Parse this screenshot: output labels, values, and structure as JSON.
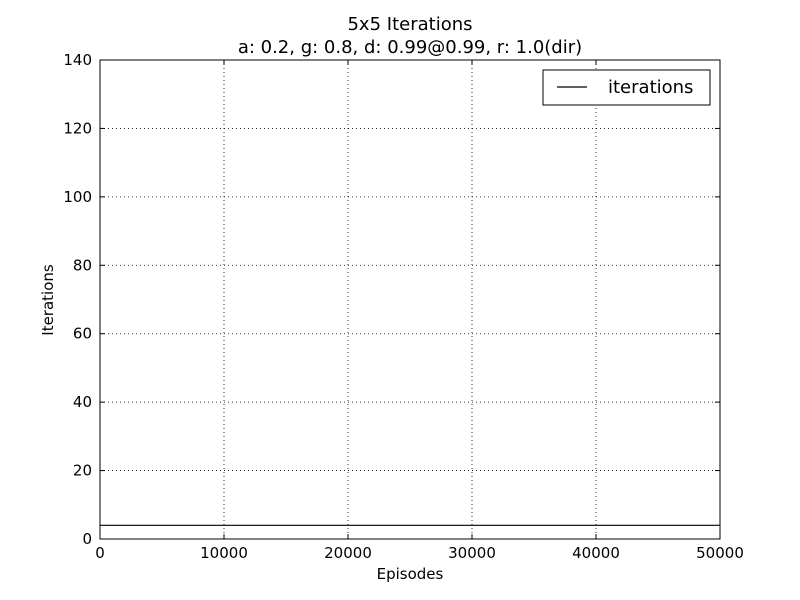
{
  "chart_data": {
    "type": "line",
    "title": "5x5 Iterations",
    "subtitle": "a: 0.2, g: 0.8, d: 0.99@0.99, r: 1.0(dir)",
    "xlabel": "Episodes",
    "ylabel": "Iterations",
    "xlim": [
      0,
      50000
    ],
    "ylim": [
      0,
      140
    ],
    "xticks": [
      0,
      10000,
      20000,
      30000,
      40000,
      50000
    ],
    "yticks": [
      0,
      20,
      40,
      60,
      80,
      100,
      120,
      140
    ],
    "grid": true,
    "legend_position": "top-right",
    "series": [
      {
        "name": "iterations",
        "color": "#000000",
        "x": [
          0,
          50000
        ],
        "y": [
          4,
          4
        ]
      }
    ]
  }
}
